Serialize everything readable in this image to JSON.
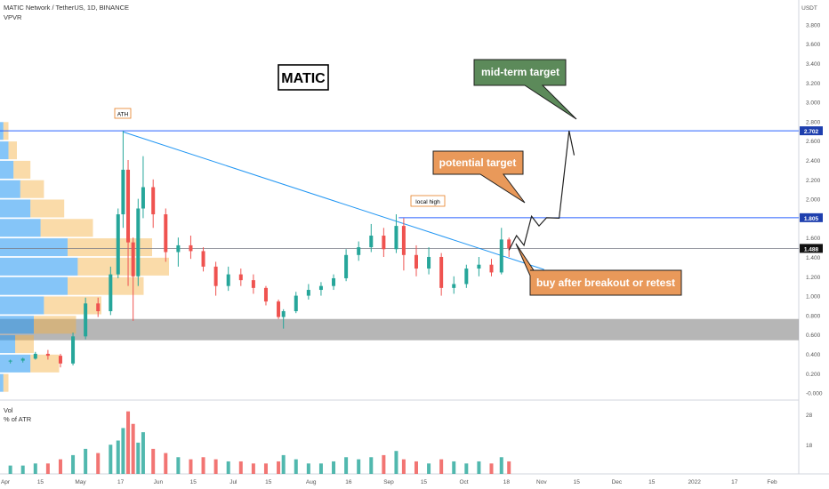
{
  "header": {
    "symbol_line": "MATIC Network / TetherUS, 1D, BINANCE",
    "indicator": "VPVR",
    "currency": "USDT",
    "volume_label": "Vol",
    "atr_label": "% of ATR"
  },
  "chart_data": {
    "type": "candlestick",
    "title": "MATIC",
    "price_axis": {
      "ticks": [
        "-0.000",
        "0.200",
        "0.400",
        "0.600",
        "0.800",
        "1.000",
        "1.200",
        "1.400",
        "1.600",
        "1.800",
        "2.000",
        "2.200",
        "2.400",
        "2.600",
        "2.800",
        "3.000",
        "3.200",
        "3.400",
        "3.600",
        "3.800"
      ],
      "ylim": [
        -0.05,
        3.85
      ]
    },
    "volume_axis": {
      "ticks": [
        "28",
        "18"
      ]
    },
    "time_axis": {
      "labels": [
        "Apr",
        "15",
        "May",
        "17",
        "Jun",
        "15",
        "Jul",
        "15",
        "Aug",
        "16",
        "Sep",
        "15",
        "Oct",
        "18",
        "Nov",
        "15",
        "Dec",
        "15",
        "2022",
        "17",
        "Feb"
      ],
      "dates": [
        "2021-04-01",
        "2021-04-15",
        "2021-05-01",
        "2021-05-17",
        "2021-06-01",
        "2021-06-15",
        "2021-07-01",
        "2021-07-15",
        "2021-08-01",
        "2021-08-16",
        "2021-09-01",
        "2021-09-15",
        "2021-10-01",
        "2021-10-18",
        "2021-11-01",
        "2021-11-15",
        "2021-12-01",
        "2021-12-15",
        "2022-01-01",
        "2022-01-17",
        "2022-02-01"
      ]
    },
    "candles": [
      {
        "date": "2021-04-03",
        "open": 0.32,
        "high": 0.34,
        "low": 0.3,
        "close": 0.33
      },
      {
        "date": "2021-04-08",
        "open": 0.33,
        "high": 0.36,
        "low": 0.31,
        "close": 0.35
      },
      {
        "date": "2021-04-13",
        "open": 0.35,
        "high": 0.42,
        "low": 0.34,
        "close": 0.4
      },
      {
        "date": "2021-04-18",
        "open": 0.4,
        "high": 0.44,
        "low": 0.34,
        "close": 0.38
      },
      {
        "date": "2021-04-23",
        "open": 0.38,
        "high": 0.4,
        "low": 0.26,
        "close": 0.3
      },
      {
        "date": "2021-04-28",
        "open": 0.3,
        "high": 0.62,
        "low": 0.28,
        "close": 0.58
      },
      {
        "date": "2021-05-03",
        "open": 0.58,
        "high": 0.98,
        "low": 0.55,
        "close": 0.92
      },
      {
        "date": "2021-05-08",
        "open": 0.92,
        "high": 0.98,
        "low": 0.78,
        "close": 0.84
      },
      {
        "date": "2021-05-13",
        "open": 0.84,
        "high": 1.3,
        "low": 0.8,
        "close": 1.22
      },
      {
        "date": "2021-05-16",
        "open": 1.22,
        "high": 1.9,
        "low": 1.18,
        "close": 1.84
      },
      {
        "date": "2021-05-18",
        "open": 1.84,
        "high": 2.7,
        "low": 1.7,
        "close": 2.3
      },
      {
        "date": "2021-05-20",
        "open": 2.3,
        "high": 2.4,
        "low": 1.1,
        "close": 1.55
      },
      {
        "date": "2021-05-22",
        "open": 1.55,
        "high": 1.6,
        "low": 0.74,
        "close": 1.2
      },
      {
        "date": "2021-05-24",
        "open": 1.2,
        "high": 2.0,
        "low": 1.1,
        "close": 1.9
      },
      {
        "date": "2021-05-26",
        "open": 1.9,
        "high": 2.44,
        "low": 1.8,
        "close": 2.12
      },
      {
        "date": "2021-05-30",
        "open": 2.12,
        "high": 2.2,
        "low": 1.7,
        "close": 1.84
      },
      {
        "date": "2021-06-04",
        "open": 1.84,
        "high": 1.9,
        "low": 1.35,
        "close": 1.45
      },
      {
        "date": "2021-06-09",
        "open": 1.45,
        "high": 1.6,
        "low": 1.3,
        "close": 1.52
      },
      {
        "date": "2021-06-14",
        "open": 1.52,
        "high": 1.62,
        "low": 1.38,
        "close": 1.46
      },
      {
        "date": "2021-06-19",
        "open": 1.46,
        "high": 1.5,
        "low": 1.25,
        "close": 1.3
      },
      {
        "date": "2021-06-24",
        "open": 1.3,
        "high": 1.35,
        "low": 1.0,
        "close": 1.1
      },
      {
        "date": "2021-06-29",
        "open": 1.1,
        "high": 1.3,
        "low": 1.05,
        "close": 1.22
      },
      {
        "date": "2021-07-04",
        "open": 1.22,
        "high": 1.28,
        "low": 1.1,
        "close": 1.16
      },
      {
        "date": "2021-07-09",
        "open": 1.16,
        "high": 1.22,
        "low": 1.02,
        "close": 1.08
      },
      {
        "date": "2021-07-14",
        "open": 1.08,
        "high": 1.1,
        "low": 0.9,
        "close": 0.94
      },
      {
        "date": "2021-07-19",
        "open": 0.94,
        "high": 0.96,
        "low": 0.76,
        "close": 0.78
      },
      {
        "date": "2021-07-21",
        "open": 0.78,
        "high": 0.86,
        "low": 0.66,
        "close": 0.84
      },
      {
        "date": "2021-07-26",
        "open": 0.84,
        "high": 1.04,
        "low": 0.82,
        "close": 1.0
      },
      {
        "date": "2021-07-31",
        "open": 1.0,
        "high": 1.12,
        "low": 0.96,
        "close": 1.06
      },
      {
        "date": "2021-08-05",
        "open": 1.06,
        "high": 1.14,
        "low": 1.0,
        "close": 1.1
      },
      {
        "date": "2021-08-10",
        "open": 1.1,
        "high": 1.22,
        "low": 1.06,
        "close": 1.18
      },
      {
        "date": "2021-08-15",
        "open": 1.18,
        "high": 1.48,
        "low": 1.15,
        "close": 1.42
      },
      {
        "date": "2021-08-20",
        "open": 1.42,
        "high": 1.56,
        "low": 1.36,
        "close": 1.5
      },
      {
        "date": "2021-08-25",
        "open": 1.5,
        "high": 1.74,
        "low": 1.45,
        "close": 1.62
      },
      {
        "date": "2021-08-30",
        "open": 1.62,
        "high": 1.7,
        "low": 1.4,
        "close": 1.48
      },
      {
        "date": "2021-09-04",
        "open": 1.48,
        "high": 1.84,
        "low": 1.44,
        "close": 1.72
      },
      {
        "date": "2021-09-07",
        "open": 1.72,
        "high": 1.8,
        "low": 1.26,
        "close": 1.42
      },
      {
        "date": "2021-09-12",
        "open": 1.42,
        "high": 1.52,
        "low": 1.2,
        "close": 1.28
      },
      {
        "date": "2021-09-17",
        "open": 1.28,
        "high": 1.5,
        "low": 1.22,
        "close": 1.4
      },
      {
        "date": "2021-09-22",
        "open": 1.4,
        "high": 1.44,
        "low": 1.0,
        "close": 1.08
      },
      {
        "date": "2021-09-27",
        "open": 1.08,
        "high": 1.2,
        "low": 1.02,
        "close": 1.12
      },
      {
        "date": "2021-10-02",
        "open": 1.12,
        "high": 1.32,
        "low": 1.08,
        "close": 1.28
      },
      {
        "date": "2021-10-07",
        "open": 1.28,
        "high": 1.4,
        "low": 1.2,
        "close": 1.32
      },
      {
        "date": "2021-10-12",
        "open": 1.32,
        "high": 1.38,
        "low": 1.2,
        "close": 1.24
      },
      {
        "date": "2021-10-16",
        "open": 1.24,
        "high": 1.7,
        "low": 1.22,
        "close": 1.58
      },
      {
        "date": "2021-10-19",
        "open": 1.58,
        "high": 1.6,
        "low": 1.4,
        "close": 1.488
      }
    ],
    "volume": [
      4,
      4,
      5,
      5,
      7,
      9,
      12,
      10,
      14,
      16,
      22,
      30,
      24,
      15,
      20,
      12,
      10,
      8,
      7,
      8,
      7,
      6,
      6,
      5,
      5,
      6,
      9,
      7,
      5,
      5,
      6,
      8,
      7,
      8,
      9,
      11,
      7,
      6,
      5,
      7,
      6,
      5,
      6,
      5,
      8,
      6
    ],
    "lines": {
      "ath": 2.702,
      "local_high": 1.805,
      "current": 1.488,
      "trendline": {
        "from": {
          "date": "2021-05-18",
          "price": 2.69
        },
        "to": {
          "date": "2021-11-02",
          "price": 1.27
        }
      }
    },
    "support_zone": [
      0.54,
      0.76
    ],
    "projection_path": [
      {
        "date": "2021-10-19",
        "price": 1.47
      },
      {
        "date": "2021-10-22",
        "price": 1.62
      },
      {
        "date": "2021-10-25",
        "price": 1.52
      },
      {
        "date": "2021-10-28",
        "price": 1.82
      },
      {
        "date": "2021-10-31",
        "price": 1.72
      },
      {
        "date": "2021-11-03",
        "price": 1.805
      },
      {
        "date": "2021-11-08",
        "price": 1.8
      },
      {
        "date": "2021-11-12",
        "price": 2.702
      },
      {
        "date": "2021-11-14",
        "price": 2.45
      }
    ],
    "price_labels": {
      "ath": "2.702",
      "local_high": "1.805",
      "current": "1.488"
    },
    "annotations": {
      "ath": "ATH",
      "local_high": "local high",
      "mid_term": "mid-term target",
      "potential": "potential target",
      "buy": "buy after breakout or retest"
    },
    "volume_profile": [
      {
        "price": 0.1,
        "total": 0.05,
        "up": 0.02
      },
      {
        "price": 0.3,
        "total": 0.35,
        "up": 0.18
      },
      {
        "price": 0.5,
        "total": 0.2,
        "up": 0.09
      },
      {
        "price": 0.7,
        "total": 0.45,
        "up": 0.2
      },
      {
        "price": 0.9,
        "total": 0.6,
        "up": 0.26
      },
      {
        "price": 1.1,
        "total": 0.85,
        "up": 0.4
      },
      {
        "price": 1.3,
        "total": 1.0,
        "up": 0.46
      },
      {
        "price": 1.5,
        "total": 0.9,
        "up": 0.4
      },
      {
        "price": 1.7,
        "total": 0.55,
        "up": 0.24
      },
      {
        "price": 1.9,
        "total": 0.38,
        "up": 0.18
      },
      {
        "price": 2.1,
        "total": 0.26,
        "up": 0.12
      },
      {
        "price": 2.3,
        "total": 0.18,
        "up": 0.08
      },
      {
        "price": 2.5,
        "total": 0.1,
        "up": 0.05
      },
      {
        "price": 2.7,
        "total": 0.05,
        "up": 0.02
      }
    ],
    "colors": {
      "up": "#26a69a",
      "down": "#ef5350",
      "line": "#2962ff",
      "trend": "#2196f3",
      "vp_up": "#2196f3",
      "vp_down": "#f5b041"
    }
  }
}
